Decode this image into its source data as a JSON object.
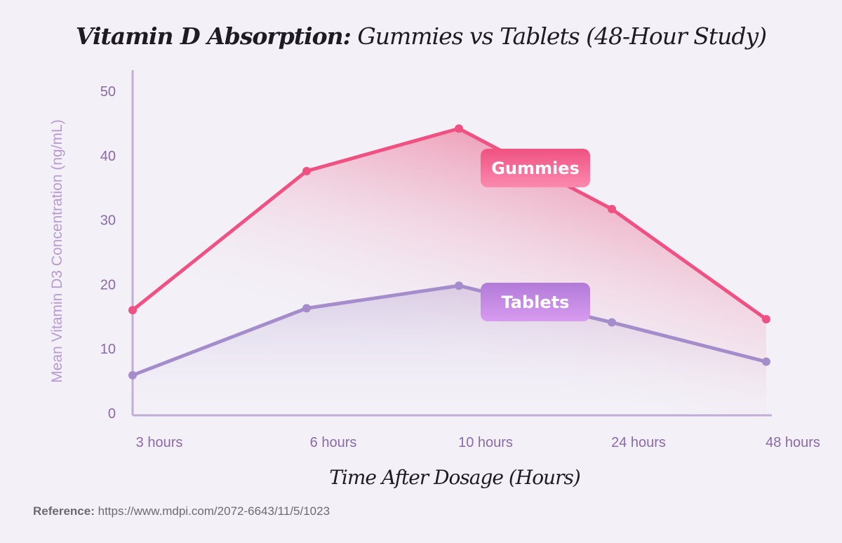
{
  "chart_data": {
    "type": "line",
    "title_bold": "Vitamin D Absorption:",
    "title_rest": " Gummies vs Tablets (48-Hour Study)",
    "xlabel": "Time After Dosage (Hours)",
    "ylabel": "Mean Vitamin D3 Concentration (ng/mL)",
    "categories": [
      "3 hours",
      "6 hours",
      "10 hours",
      "24 hours",
      "48 hours"
    ],
    "ylim": [
      0,
      50
    ],
    "yticks": [
      0,
      10,
      20,
      30,
      40,
      50
    ],
    "grid": false,
    "series": [
      {
        "name": "Gummies",
        "values": [
          16.0,
          37.6,
          44.2,
          31.7,
          14.6
        ],
        "color": "#ef5282"
      },
      {
        "name": "Tablets",
        "values": [
          5.9,
          16.3,
          19.8,
          14.1,
          8.0
        ],
        "color": "#a58ccb"
      }
    ],
    "axis_color": "#c3add9",
    "tick_color": "#8a6aab"
  },
  "reference": {
    "label": "Reference:",
    "url": "https://www.mdpi.com/2072-6643/11/5/1023"
  }
}
